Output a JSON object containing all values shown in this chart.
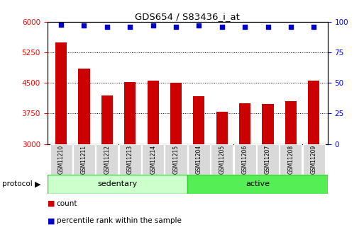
{
  "title": "GDS654 / S83436_i_at",
  "samples": [
    "GSM11210",
    "GSM11211",
    "GSM11212",
    "GSM11213",
    "GSM11214",
    "GSM11215",
    "GSM11204",
    "GSM11205",
    "GSM11206",
    "GSM11207",
    "GSM11208",
    "GSM11209"
  ],
  "counts": [
    5500,
    4850,
    4200,
    4530,
    4560,
    4510,
    4180,
    3790,
    4000,
    3990,
    4060,
    4560
  ],
  "percentile_ranks": [
    98,
    97,
    96,
    96,
    97,
    96,
    97,
    96,
    96,
    96,
    96,
    96
  ],
  "ylim_left": [
    3000,
    6000
  ],
  "ylim_right": [
    0,
    100
  ],
  "yticks_left": [
    3000,
    3750,
    4500,
    5250,
    6000
  ],
  "yticks_right": [
    0,
    25,
    50,
    75,
    100
  ],
  "bar_color": "#cc0000",
  "dot_color": "#0000cc",
  "sedentary_color": "#ccffcc",
  "active_color": "#55ee55",
  "border_color": "#33cc33",
  "protocol_label": "protocol",
  "legend_count_label": "count",
  "legend_pct_label": "percentile rank within the sample",
  "background_color": "#ffffff",
  "sample_box_color": "#d9d9d9"
}
